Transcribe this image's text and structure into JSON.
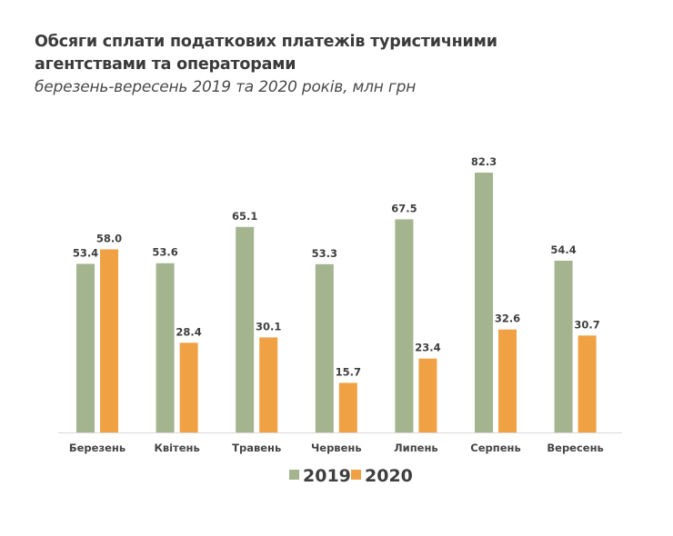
{
  "chart_data": {
    "type": "bar",
    "title": "Обсяги сплати податкових платежів туристичними агентствами та операторами",
    "subtitle": "березень-вересень 2019 та 2020 років, млн грн",
    "xlabel": "",
    "ylabel": "",
    "ylim": [
      0,
      90
    ],
    "grid": false,
    "legend_position": "bottom-center",
    "categories": [
      "Березень",
      "Квітень",
      "Травень",
      "Червень",
      "Липень",
      "Серпень",
      "Вересень"
    ],
    "series": [
      {
        "name": "2019",
        "color": "#a3b48f",
        "values": [
          53.4,
          53.6,
          65.1,
          53.3,
          67.5,
          82.3,
          54.4
        ]
      },
      {
        "name": "2020",
        "color": "#f0a144",
        "values": [
          58.0,
          28.4,
          30.1,
          15.7,
          23.4,
          32.6,
          30.7
        ]
      }
    ]
  }
}
